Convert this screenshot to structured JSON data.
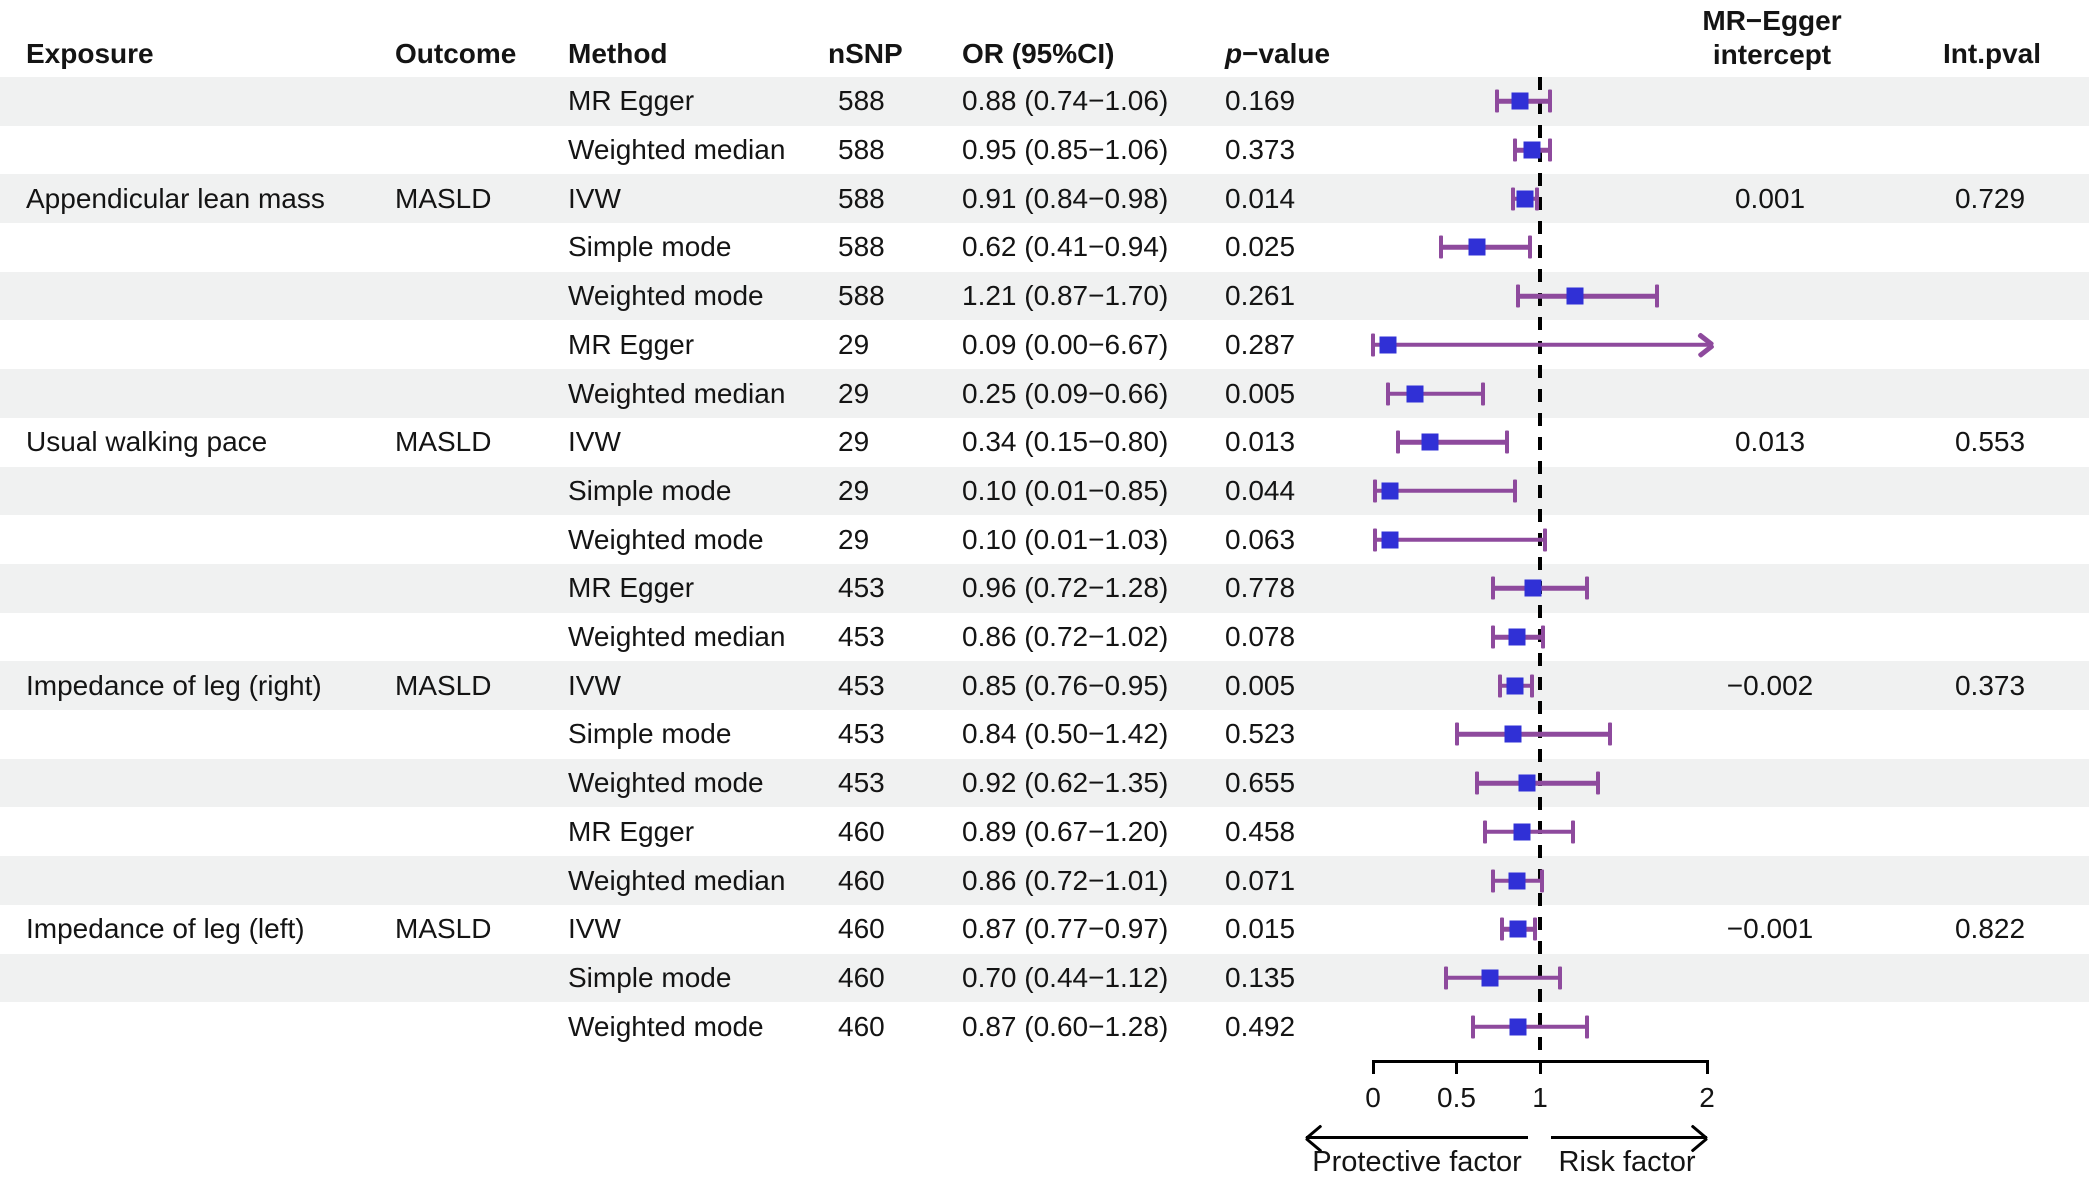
{
  "figure": {
    "headers": {
      "exposure": "Exposure",
      "outcome": "Outcome",
      "method": "Method",
      "nsnp": "nSNP",
      "or_ci": "OR (95%CI)",
      "pvalue_p": "p",
      "pvalue_rest": "−value",
      "egger_line1": "MR−Egger",
      "egger_line2": "intercept",
      "intpval": "Int.pval"
    },
    "direction_labels": {
      "protective": "Protective factor",
      "risk": "Risk factor"
    }
  },
  "colors": {
    "marker_blue": "#3030d6",
    "ci_purple": "#8e4a9d",
    "row_shade": "#f0f1f1",
    "axis_black": "#000000",
    "text": "#141414"
  },
  "chart_data": {
    "type": "forest",
    "x_axis": {
      "range": [
        0,
        2
      ],
      "reference_line": 1,
      "ticks": [
        {
          "v": 0,
          "label": "0"
        },
        {
          "v": 0.5,
          "label": "0.5"
        },
        {
          "v": 1,
          "label": "1"
        },
        {
          "v": 2,
          "label": "2"
        }
      ]
    },
    "direction_labels": {
      "left": "Protective factor",
      "right": "Risk factor"
    },
    "groups": [
      {
        "exposure": "Appendicular lean mass",
        "outcome": "MASLD",
        "egger_intercept": "0.001",
        "int_pval": "0.729",
        "estimates": [
          {
            "method": "MR Egger",
            "nsnp": "588",
            "or": 0.88,
            "ci_low": 0.74,
            "ci_high": 1.06,
            "or_ci": "0.88 (0.74−1.06)",
            "p": "0.169"
          },
          {
            "method": "Weighted median",
            "nsnp": "588",
            "or": 0.95,
            "ci_low": 0.85,
            "ci_high": 1.06,
            "or_ci": "0.95 (0.85−1.06)",
            "p": "0.373"
          },
          {
            "method": "IVW",
            "nsnp": "588",
            "or": 0.91,
            "ci_low": 0.84,
            "ci_high": 0.98,
            "or_ci": "0.91 (0.84−0.98)",
            "p": "0.014"
          },
          {
            "method": "Simple mode",
            "nsnp": "588",
            "or": 0.62,
            "ci_low": 0.41,
            "ci_high": 0.94,
            "or_ci": "0.62 (0.41−0.94)",
            "p": "0.025"
          },
          {
            "method": "Weighted mode",
            "nsnp": "588",
            "or": 1.21,
            "ci_low": 0.87,
            "ci_high": 1.7,
            "or_ci": "1.21 (0.87−1.70)",
            "p": "0.261"
          }
        ]
      },
      {
        "exposure": "Usual walking pace",
        "outcome": "MASLD",
        "egger_intercept": "0.013",
        "int_pval": "0.553",
        "estimates": [
          {
            "method": "MR Egger",
            "nsnp": "29",
            "or": 0.09,
            "ci_low": 0.0,
            "ci_high": 6.67,
            "or_ci": "0.09 (0.00−6.67)",
            "p": "0.287"
          },
          {
            "method": "Weighted median",
            "nsnp": "29",
            "or": 0.25,
            "ci_low": 0.09,
            "ci_high": 0.66,
            "or_ci": "0.25 (0.09−0.66)",
            "p": "0.005"
          },
          {
            "method": "IVW",
            "nsnp": "29",
            "or": 0.34,
            "ci_low": 0.15,
            "ci_high": 0.8,
            "or_ci": "0.34 (0.15−0.80)",
            "p": "0.013"
          },
          {
            "method": "Simple mode",
            "nsnp": "29",
            "or": 0.1,
            "ci_low": 0.01,
            "ci_high": 0.85,
            "or_ci": "0.10 (0.01−0.85)",
            "p": "0.044"
          },
          {
            "method": "Weighted mode",
            "nsnp": "29",
            "or": 0.1,
            "ci_low": 0.01,
            "ci_high": 1.03,
            "or_ci": "0.10 (0.01−1.03)",
            "p": "0.063"
          }
        ]
      },
      {
        "exposure": "Impedance of leg (right)",
        "outcome": "MASLD",
        "egger_intercept": "−0.002",
        "int_pval": "0.373",
        "estimates": [
          {
            "method": "MR Egger",
            "nsnp": "453",
            "or": 0.96,
            "ci_low": 0.72,
            "ci_high": 1.28,
            "or_ci": "0.96 (0.72−1.28)",
            "p": "0.778"
          },
          {
            "method": "Weighted median",
            "nsnp": "453",
            "or": 0.86,
            "ci_low": 0.72,
            "ci_high": 1.02,
            "or_ci": "0.86 (0.72−1.02)",
            "p": "0.078"
          },
          {
            "method": "IVW",
            "nsnp": "453",
            "or": 0.85,
            "ci_low": 0.76,
            "ci_high": 0.95,
            "or_ci": "0.85 (0.76−0.95)",
            "p": "0.005"
          },
          {
            "method": "Simple mode",
            "nsnp": "453",
            "or": 0.84,
            "ci_low": 0.5,
            "ci_high": 1.42,
            "or_ci": "0.84 (0.50−1.42)",
            "p": "0.523"
          },
          {
            "method": "Weighted mode",
            "nsnp": "453",
            "or": 0.92,
            "ci_low": 0.62,
            "ci_high": 1.35,
            "or_ci": "0.92 (0.62−1.35)",
            "p": "0.655"
          }
        ]
      },
      {
        "exposure": "Impedance of leg (left)",
        "outcome": "MASLD",
        "egger_intercept": "−0.001",
        "int_pval": "0.822",
        "estimates": [
          {
            "method": "MR Egger",
            "nsnp": "460",
            "or": 0.89,
            "ci_low": 0.67,
            "ci_high": 1.2,
            "or_ci": "0.89 (0.67−1.20)",
            "p": "0.458"
          },
          {
            "method": "Weighted median",
            "nsnp": "460",
            "or": 0.86,
            "ci_low": 0.72,
            "ci_high": 1.01,
            "or_ci": "0.86 (0.72−1.01)",
            "p": "0.071"
          },
          {
            "method": "IVW",
            "nsnp": "460",
            "or": 0.87,
            "ci_low": 0.77,
            "ci_high": 0.97,
            "or_ci": "0.87 (0.77−0.97)",
            "p": "0.015"
          },
          {
            "method": "Simple mode",
            "nsnp": "460",
            "or": 0.7,
            "ci_low": 0.44,
            "ci_high": 1.12,
            "or_ci": "0.70 (0.44−1.12)",
            "p": "0.135"
          },
          {
            "method": "Weighted mode",
            "nsnp": "460",
            "or": 0.87,
            "ci_low": 0.6,
            "ci_high": 1.28,
            "or_ci": "0.87 (0.60−1.28)",
            "p": "0.492"
          }
        ]
      }
    ]
  }
}
